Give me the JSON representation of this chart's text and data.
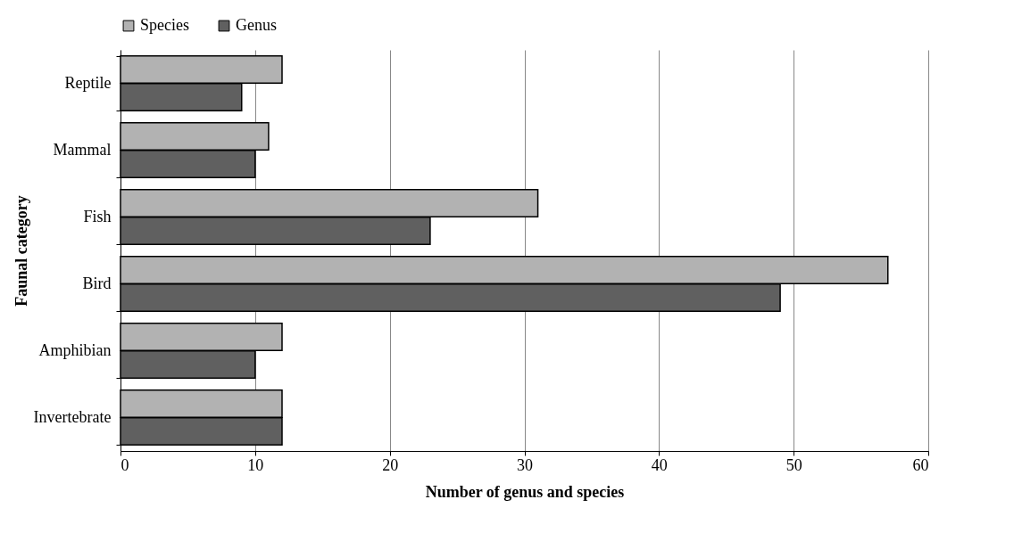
{
  "chart_data": {
    "type": "bar",
    "orientation": "horizontal",
    "xlabel": "Number of genus and species",
    "ylabel": "Faunal category",
    "categories": [
      "Reptile",
      "Mammal",
      "Fish",
      "Bird",
      "Amphibian",
      "Invertebrate"
    ],
    "series": [
      {
        "name": "Species",
        "color": "#b2b2b2",
        "values": [
          12,
          11,
          31,
          57,
          12,
          12
        ]
      },
      {
        "name": "Genus",
        "color": "#606060",
        "values": [
          9,
          10,
          23,
          49,
          10,
          12
        ]
      }
    ],
    "xlim": [
      0,
      60
    ],
    "xticks": [
      0,
      10,
      20,
      30,
      40,
      50,
      60
    ],
    "grid": "x",
    "legend": "top"
  }
}
